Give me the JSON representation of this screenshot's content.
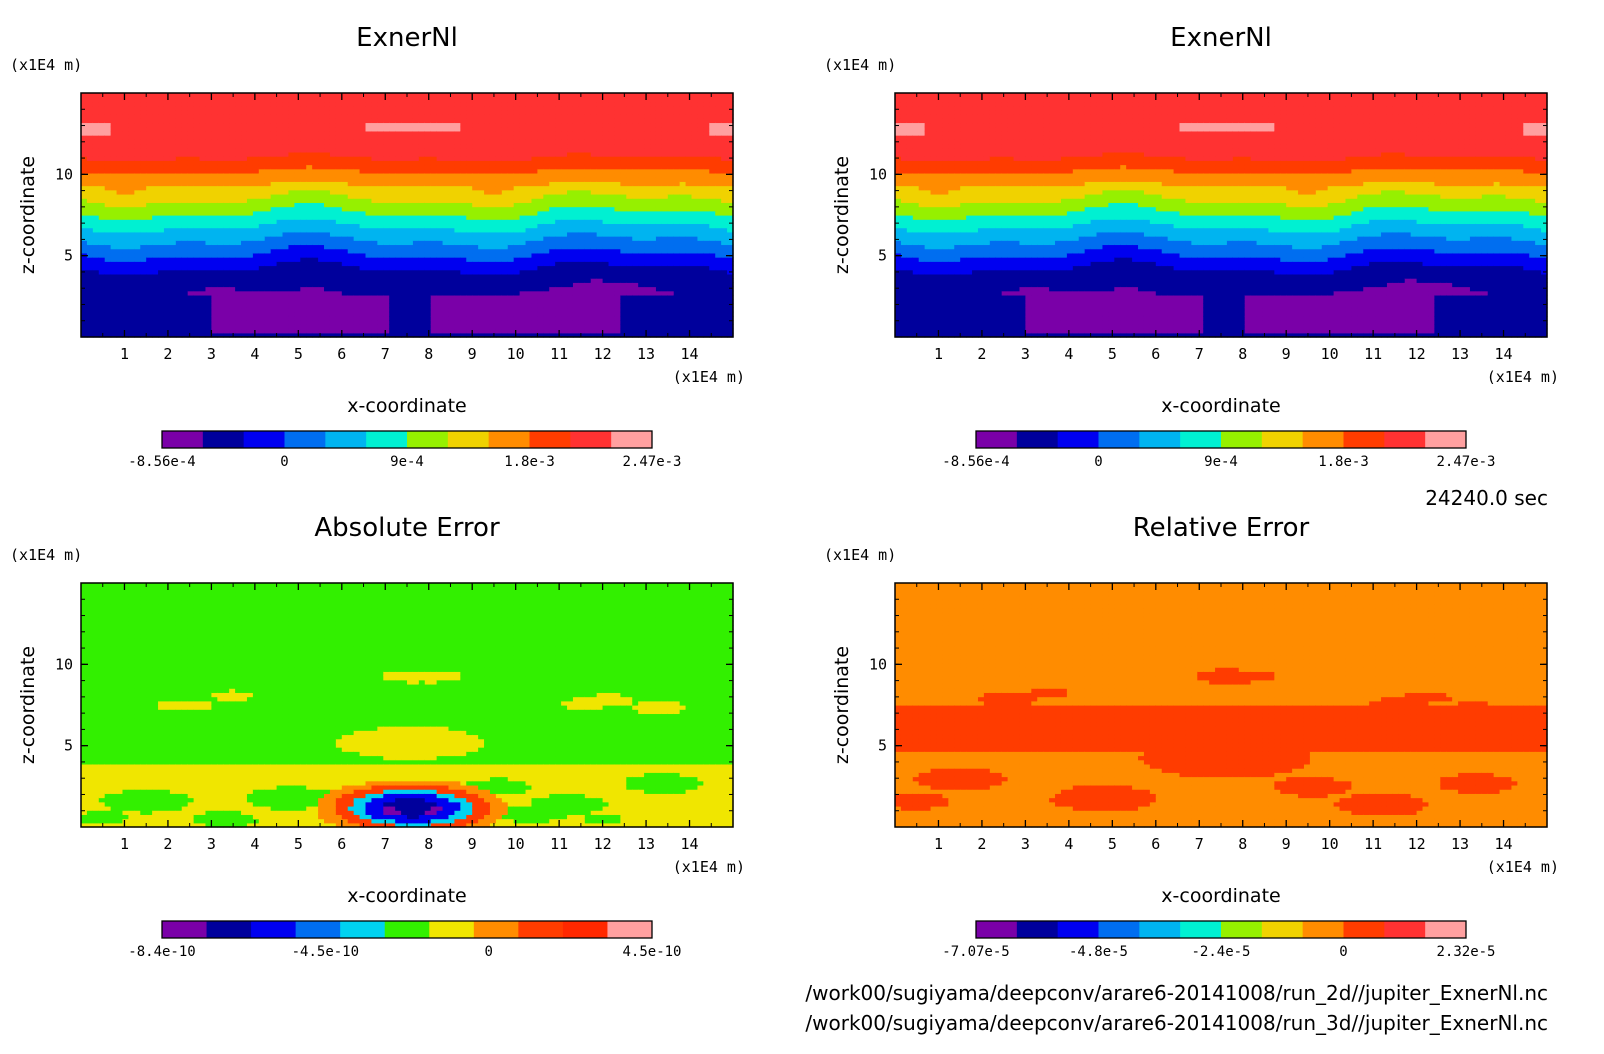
{
  "time_label": "24240.0 sec",
  "file_paths": [
    "/work00/sugiyama/deepconv/arare6-20141008/run_2d//jupiter_ExnerNl.nc",
    "/work00/sugiyama/deepconv/arare6-20141008/run_3d//jupiter_ExnerNl.nc"
  ],
  "chart_data": [
    {
      "type": "heatmap",
      "title": "ExnerNl",
      "xlabel": "x-coordinate",
      "ylabel": "z-coordinate",
      "x_unit": "(x1E4 m)",
      "y_unit": "(x1E4 m)",
      "xlim": [
        0,
        15
      ],
      "ylim": [
        0,
        15
      ],
      "xticks": [
        "1",
        "2",
        "3",
        "4",
        "5",
        "6",
        "7",
        "8",
        "9",
        "10",
        "11",
        "12",
        "13",
        "14"
      ],
      "yticks": [
        "5",
        "10"
      ],
      "colorbar": {
        "colors": [
          "#7a00a8",
          "#00009c",
          "#0000f0",
          "#006ef0",
          "#00b4f0",
          "#00f0d2",
          "#96f000",
          "#f0d200",
          "#ff8c00",
          "#ff3c00",
          "#ff3232",
          "#ffa0a0"
        ],
        "labels": [
          "-8.56e-4",
          "0",
          "9e-4",
          "1.8e-3",
          "2.47e-3"
        ]
      },
      "field": "layered"
    },
    {
      "type": "heatmap",
      "title": "ExnerNl",
      "xlabel": "x-coordinate",
      "ylabel": "z-coordinate",
      "x_unit": "(x1E4 m)",
      "y_unit": "(x1E4 m)",
      "xlim": [
        0,
        15
      ],
      "ylim": [
        0,
        15
      ],
      "xticks": [
        "1",
        "2",
        "3",
        "4",
        "5",
        "6",
        "7",
        "8",
        "9",
        "10",
        "11",
        "12",
        "13",
        "14"
      ],
      "yticks": [
        "5",
        "10"
      ],
      "colorbar": {
        "colors": [
          "#7a00a8",
          "#00009c",
          "#0000f0",
          "#006ef0",
          "#00b4f0",
          "#00f0d2",
          "#96f000",
          "#f0d200",
          "#ff8c00",
          "#ff3c00",
          "#ff3232",
          "#ffa0a0"
        ],
        "labels": [
          "-8.56e-4",
          "0",
          "9e-4",
          "1.8e-3",
          "2.47e-3"
        ]
      },
      "field": "layered"
    },
    {
      "type": "heatmap",
      "title": "Absolute Error",
      "xlabel": "x-coordinate",
      "ylabel": "z-coordinate",
      "x_unit": "(x1E4 m)",
      "y_unit": "(x1E4 m)",
      "xlim": [
        0,
        15
      ],
      "ylim": [
        0,
        15
      ],
      "xticks": [
        "1",
        "2",
        "3",
        "4",
        "5",
        "6",
        "7",
        "8",
        "9",
        "10",
        "11",
        "12",
        "13",
        "14"
      ],
      "yticks": [
        "5",
        "10"
      ],
      "colorbar": {
        "colors": [
          "#7a00a8",
          "#00009c",
          "#0000f0",
          "#006ef0",
          "#00d2f0",
          "#32f000",
          "#f0e600",
          "#ff8c00",
          "#ff3c00",
          "#ff2800",
          "#ffa0a0"
        ],
        "labels": [
          "-8.4e-10",
          "-4.5e-10",
          "0",
          "4.5e-10"
        ]
      },
      "field": "abs_error"
    },
    {
      "type": "heatmap",
      "title": "Relative Error",
      "xlabel": "x-coordinate",
      "ylabel": "z-coordinate",
      "x_unit": "(x1E4 m)",
      "y_unit": "(x1E4 m)",
      "xlim": [
        0,
        15
      ],
      "ylim": [
        0,
        15
      ],
      "xticks": [
        "1",
        "2",
        "3",
        "4",
        "5",
        "6",
        "7",
        "8",
        "9",
        "10",
        "11",
        "12",
        "13",
        "14"
      ],
      "yticks": [
        "5",
        "10"
      ],
      "colorbar": {
        "colors": [
          "#7a00a8",
          "#00009c",
          "#0000f0",
          "#006ef0",
          "#00b4f0",
          "#00f0d2",
          "#96f000",
          "#f0d200",
          "#ff8c00",
          "#ff3c00",
          "#ff3232",
          "#ffa0a0"
        ],
        "labels": [
          "-7.07e-5",
          "-4.8e-5",
          "-2.4e-5",
          "0",
          "2.32e-5"
        ]
      },
      "field": "rel_error"
    }
  ]
}
